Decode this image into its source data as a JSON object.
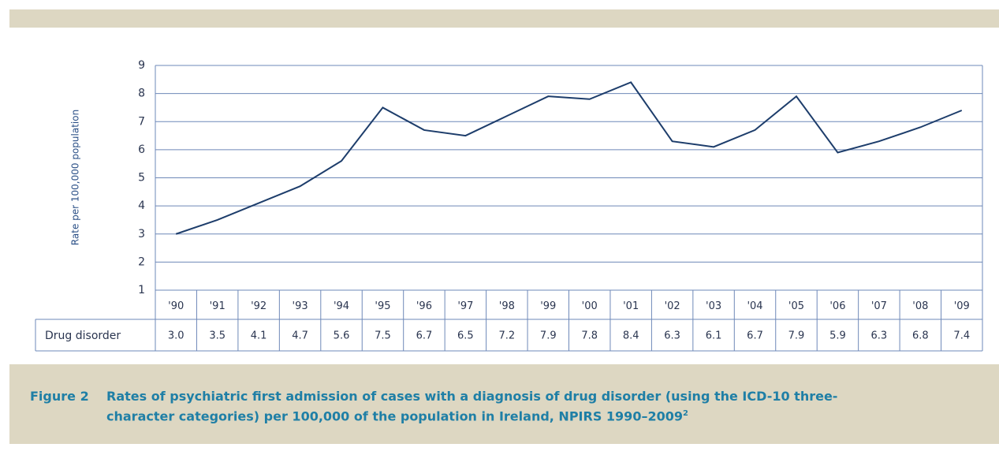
{
  "chart_data": {
    "type": "line",
    "y_label": "Rate per 100,000 population",
    "categories": [
      "'90",
      "'91",
      "'92",
      "'93",
      "'94",
      "'95",
      "'96",
      "'97",
      "'98",
      "'99",
      "'00",
      "'01",
      "'02",
      "'03",
      "'04",
      "'05",
      "'06",
      "'07",
      "'08",
      "'09"
    ],
    "series": [
      {
        "name": "Drug disorder",
        "color": "#1d3d6b",
        "values": [
          3.0,
          3.5,
          4.1,
          4.7,
          5.6,
          7.5,
          6.7,
          6.5,
          7.2,
          7.9,
          7.8,
          8.4,
          6.3,
          6.1,
          6.7,
          7.9,
          5.9,
          6.3,
          6.8,
          7.4
        ],
        "value_labels": [
          "3.0",
          "3.5",
          "4.1",
          "4.7",
          "5.6",
          "7.5",
          "6.7",
          "6.5",
          "7.2",
          "7.9",
          "7.8",
          "8.4",
          "6.3",
          "6.1",
          "6.7",
          "7.9",
          "5.9",
          "6.3",
          "6.8",
          "7.4"
        ]
      }
    ],
    "ylim": [
      1,
      9
    ],
    "yticks": [
      1,
      2,
      3,
      4,
      5,
      6,
      7,
      8,
      9
    ],
    "grid": true,
    "grid_color": "#6e88b8"
  },
  "caption": {
    "label": "Figure 2",
    "text": "Rates of psychiatric first admission of cases with a diagnosis of drug disorder (using the ICD-10 three-character categories) per 100,000 of the population in Ireland, NPIRS 1990–2009",
    "note": "2"
  }
}
